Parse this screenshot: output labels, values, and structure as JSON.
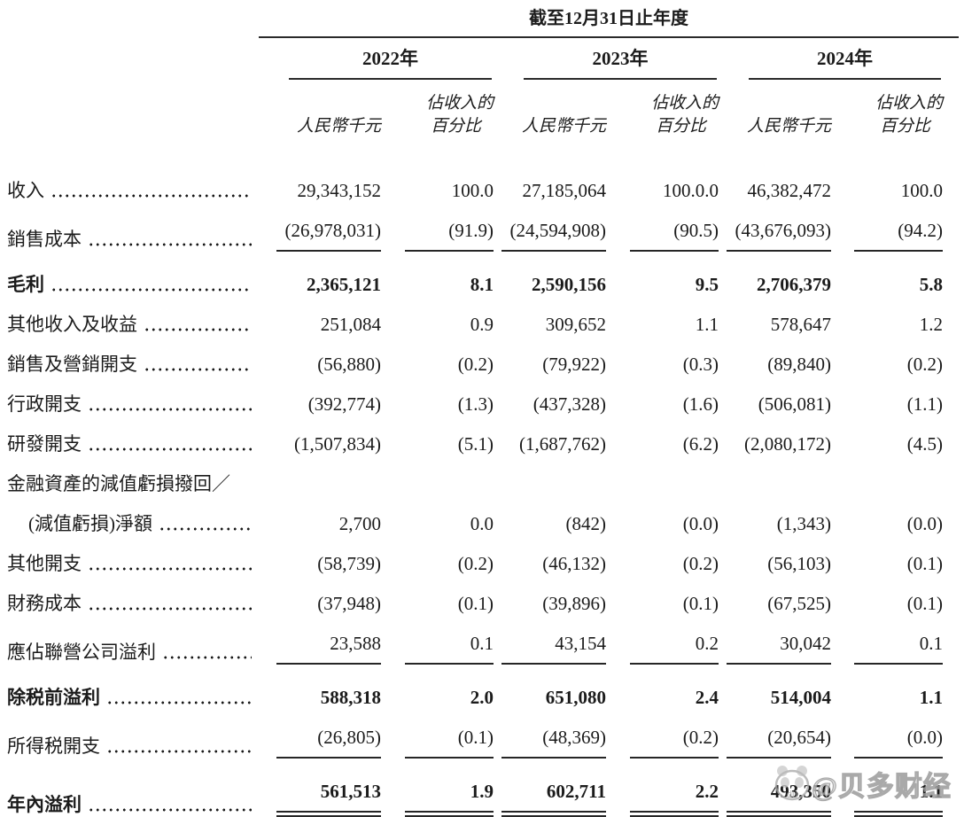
{
  "header": {
    "period_title": "截至12月31日止年度",
    "years": [
      "2022年",
      "2023年",
      "2024年"
    ],
    "amount_unit": "人民幣千元",
    "pct_line1": "佔收入的",
    "pct_line2": "百分比"
  },
  "rows": [
    {
      "label": "收入",
      "cells": [
        "29,343,152",
        "100.0",
        "27,185,064",
        "100.0.0",
        "46,382,472",
        "100.0"
      ]
    },
    {
      "label": "銷售成本",
      "rule": "single",
      "cells": [
        "(26,978,031)",
        "(91.9)",
        "(24,594,908)",
        "(90.5)",
        "(43,676,093)",
        "(94.2)"
      ]
    },
    {
      "label": "毛利",
      "bold": true,
      "cells": [
        "2,365,121",
        "8.1",
        "2,590,156",
        "9.5",
        "2,706,379",
        "5.8"
      ]
    },
    {
      "label": "其他收入及收益",
      "cells": [
        "251,084",
        "0.9",
        "309,652",
        "1.1",
        "578,647",
        "1.2"
      ]
    },
    {
      "label": "銷售及營銷開支",
      "cells": [
        "(56,880)",
        "(0.2)",
        "(79,922)",
        "(0.3)",
        "(89,840)",
        "(0.2)"
      ]
    },
    {
      "label": "行政開支",
      "cells": [
        "(392,774)",
        "(1.3)",
        "(437,328)",
        "(1.6)",
        "(506,081)",
        "(1.1)"
      ]
    },
    {
      "label": "研發開支",
      "cells": [
        "(1,507,834)",
        "(5.1)",
        "(1,687,762)",
        "(6.2)",
        "(2,080,172)",
        "(4.5)"
      ]
    },
    {
      "label_prefix": "金融資產的減值虧損撥回／",
      "label": "(減值虧損)淨額",
      "indent": true,
      "cells": [
        "2,700",
        "0.0",
        "(842)",
        "(0.0)",
        "(1,343)",
        "(0.0)"
      ]
    },
    {
      "label": "其他開支",
      "cells": [
        "(58,739)",
        "(0.2)",
        "(46,132)",
        "(0.2)",
        "(56,103)",
        "(0.1)"
      ]
    },
    {
      "label": "財務成本",
      "cells": [
        "(37,948)",
        "(0.1)",
        "(39,896)",
        "(0.1)",
        "(67,525)",
        "(0.1)"
      ]
    },
    {
      "label": "應佔聯營公司溢利",
      "rule": "single",
      "cells": [
        "23,588",
        "0.1",
        "43,154",
        "0.2",
        "30,042",
        "0.1"
      ]
    },
    {
      "label": "除税前溢利",
      "bold": true,
      "cells": [
        "588,318",
        "2.0",
        "651,080",
        "2.4",
        "514,004",
        "1.1"
      ]
    },
    {
      "label": "所得税開支",
      "rule": "single",
      "cells": [
        "(26,805)",
        "(0.1)",
        "(48,369)",
        "(0.2)",
        "(20,654)",
        "(0.0)"
      ]
    },
    {
      "label": "年內溢利",
      "bold": true,
      "rule": "double",
      "cells": [
        "561,513",
        "1.9",
        "602,711",
        "2.2",
        "493,350",
        "1.1"
      ]
    }
  ],
  "watermark": {
    "text": "@贝多财经"
  },
  "colors": {
    "text": "#1b1b1b",
    "rule": "#262626",
    "watermark": "#9b9b9b",
    "background": "#ffffff"
  }
}
